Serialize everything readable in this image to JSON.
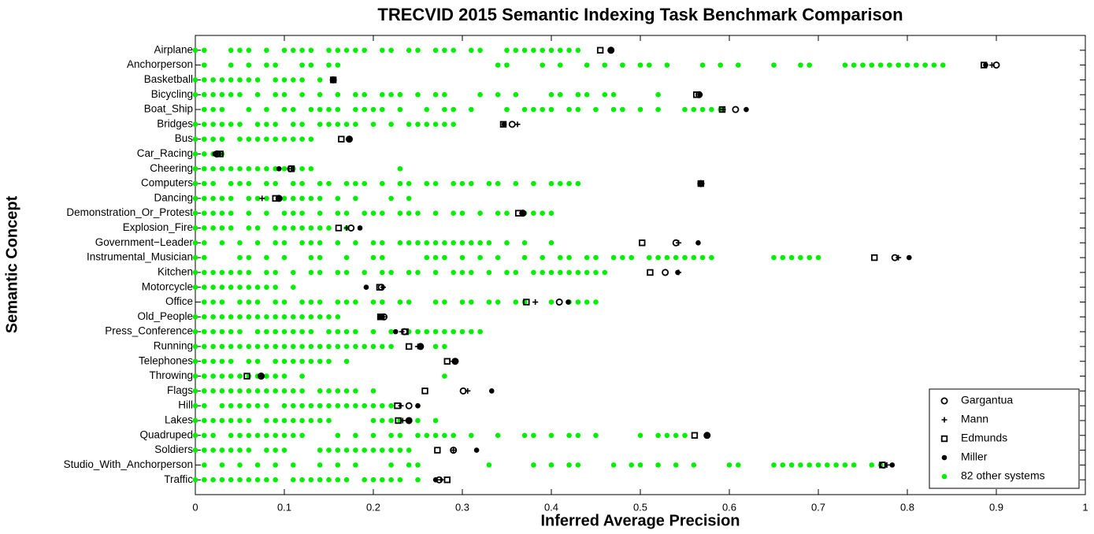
{
  "chart_data": {
    "type": "dotplot",
    "title": "TRECVID 2015 Semantic Indexing Task Benchmark Comparison",
    "xlabel": "Inferred Average Precision",
    "ylabel": "Semantic Concept",
    "categories": [
      "Airplane",
      "Anchorperson",
      "Basketball",
      "Bicycling",
      "Boat_Ship",
      "Bridges",
      "Bus",
      "Car_Racing",
      "Cheering",
      "Computers",
      "Dancing",
      "Demonstration_Or_Protest",
      "Explosion_Fire",
      "Government−Leader",
      "Instrumental_Musician",
      "Kitchen",
      "Motorcycle",
      "Office",
      "Old_People",
      "Press_Conference",
      "Running",
      "Telephones",
      "Throwing",
      "Flags",
      "Hill",
      "Lakes",
      "Quadruped",
      "Soldiers",
      "Studio_With_Anchorperson",
      "Traffic"
    ],
    "xlim": [
      0,
      1
    ],
    "xticks": [
      0,
      0.1,
      0.2,
      0.3,
      0.4,
      0.5,
      0.6,
      0.7,
      0.8,
      0.9,
      1
    ],
    "legend": "lower right",
    "series": [
      {
        "name": "Gargantua",
        "marker": "circle-open",
        "color": "#000000",
        "values": [
          0.467,
          0.9,
          0.155,
          0.566,
          0.607,
          0.356,
          0.173,
          0.024,
          0.107,
          0.568,
          0.094,
          0.368,
          0.175,
          0.54,
          0.786,
          0.528,
          0.209,
          0.409,
          0.212,
          0.235,
          0.253,
          0.292,
          0.074,
          0.301,
          0.24,
          0.24,
          0.575,
          0.29,
          0.773,
          0.274
        ]
      },
      {
        "name": "Mann",
        "marker": "plus",
        "color": "#000000",
        "values": [
          0.467,
          0.895,
          0.155,
          0.567,
          0.593,
          0.362,
          0.172,
          0.028,
          0.108,
          0.569,
          0.075,
          0.367,
          0.17,
          0.543,
          0.79,
          0.543,
          0.211,
          0.382,
          0.212,
          0.232,
          0.25,
          0.29,
          0.074,
          0.306,
          0.231,
          0.233,
          0.575,
          0.29,
          0.777,
          0.276
        ]
      },
      {
        "name": "Edmunds",
        "marker": "square-open",
        "color": "#000000",
        "values": [
          0.455,
          0.886,
          0.155,
          0.563,
          0.592,
          0.346,
          0.164,
          0.028,
          0.108,
          0.568,
          0.09,
          0.363,
          0.161,
          0.502,
          0.763,
          0.511,
          0.207,
          0.372,
          0.208,
          0.236,
          0.24,
          0.283,
          0.058,
          0.258,
          0.227,
          0.228,
          0.561,
          0.272,
          0.772,
          0.283
        ]
      },
      {
        "name": "Miller",
        "marker": "dot",
        "color": "#000000",
        "values": [
          0.467,
          0.888,
          0.155,
          0.567,
          0.619,
          0.347,
          0.173,
          0.022,
          0.094,
          0.568,
          0.094,
          0.368,
          0.185,
          0.565,
          0.802,
          0.542,
          0.192,
          0.419,
          0.208,
          0.225,
          0.253,
          0.292,
          0.075,
          0.333,
          0.25,
          0.24,
          0.575,
          0.316,
          0.783,
          0.27
        ]
      },
      {
        "name": "82 other systems",
        "marker": "dot",
        "color": "#00ee00",
        "values": [
          [
            0.0,
            0.01,
            0.04,
            0.05,
            0.06,
            0.08,
            0.1,
            0.11,
            0.12,
            0.13,
            0.15,
            0.16,
            0.17,
            0.18,
            0.19,
            0.21,
            0.22,
            0.24,
            0.25,
            0.27,
            0.28,
            0.29,
            0.31,
            0.32,
            0.35,
            0.36,
            0.37,
            0.38,
            0.39,
            0.4,
            0.41,
            0.42,
            0.43
          ],
          [
            0.01,
            0.04,
            0.06,
            0.08,
            0.09,
            0.12,
            0.13,
            0.15,
            0.16,
            0.34,
            0.35,
            0.39,
            0.41,
            0.44,
            0.46,
            0.48,
            0.5,
            0.51,
            0.53,
            0.57,
            0.59,
            0.61,
            0.65,
            0.68,
            0.69,
            0.73,
            0.74,
            0.75,
            0.76,
            0.77,
            0.78,
            0.79,
            0.8,
            0.81,
            0.82,
            0.83,
            0.84
          ],
          [
            0.0,
            0.01,
            0.02,
            0.03,
            0.04,
            0.05,
            0.06,
            0.07,
            0.09,
            0.1,
            0.11,
            0.12,
            0.14
          ],
          [
            0.0,
            0.01,
            0.02,
            0.03,
            0.04,
            0.05,
            0.07,
            0.09,
            0.1,
            0.12,
            0.14,
            0.16,
            0.18,
            0.19,
            0.21,
            0.22,
            0.23,
            0.25,
            0.27,
            0.28,
            0.32,
            0.34,
            0.36,
            0.4,
            0.41,
            0.43,
            0.44,
            0.46,
            0.47,
            0.52
          ],
          [
            0.01,
            0.02,
            0.03,
            0.06,
            0.08,
            0.1,
            0.11,
            0.13,
            0.14,
            0.15,
            0.16,
            0.18,
            0.19,
            0.2,
            0.21,
            0.23,
            0.26,
            0.28,
            0.29,
            0.31,
            0.35,
            0.37,
            0.38,
            0.39,
            0.4,
            0.42,
            0.43,
            0.45,
            0.47,
            0.48,
            0.5,
            0.52,
            0.55,
            0.56,
            0.57,
            0.58,
            0.59
          ],
          [
            0.0,
            0.01,
            0.02,
            0.03,
            0.04,
            0.05,
            0.07,
            0.08,
            0.09,
            0.11,
            0.12,
            0.14,
            0.15,
            0.16,
            0.17,
            0.18,
            0.2,
            0.22,
            0.24,
            0.25,
            0.26,
            0.27,
            0.28,
            0.29
          ],
          [
            0.0,
            0.01,
            0.02,
            0.03,
            0.05,
            0.06,
            0.07,
            0.08,
            0.09,
            0.1,
            0.11,
            0.12,
            0.13
          ],
          [
            0.0,
            0.01,
            0.02,
            0.03
          ],
          [
            0.0,
            0.01,
            0.02,
            0.03,
            0.04,
            0.05,
            0.06,
            0.07,
            0.08,
            0.09,
            0.1,
            0.11,
            0.12,
            0.13,
            0.23
          ],
          [
            0.0,
            0.01,
            0.02,
            0.04,
            0.05,
            0.06,
            0.08,
            0.09,
            0.11,
            0.12,
            0.14,
            0.15,
            0.17,
            0.18,
            0.19,
            0.21,
            0.23,
            0.24,
            0.26,
            0.27,
            0.29,
            0.3,
            0.31,
            0.33,
            0.34,
            0.36,
            0.38,
            0.4,
            0.41,
            0.42,
            0.43
          ],
          [
            0.0,
            0.01,
            0.02,
            0.03,
            0.04,
            0.06,
            0.07,
            0.08,
            0.1,
            0.11,
            0.12,
            0.13,
            0.14,
            0.16,
            0.18,
            0.22,
            0.24
          ],
          [
            0.0,
            0.01,
            0.02,
            0.03,
            0.04,
            0.06,
            0.08,
            0.1,
            0.11,
            0.12,
            0.14,
            0.16,
            0.17,
            0.19,
            0.2,
            0.21,
            0.23,
            0.24,
            0.25,
            0.27,
            0.29,
            0.3,
            0.32,
            0.34,
            0.35,
            0.37,
            0.38,
            0.39,
            0.4
          ],
          [
            0.0,
            0.01,
            0.02,
            0.03,
            0.04,
            0.06,
            0.07,
            0.09,
            0.1,
            0.11,
            0.12,
            0.13,
            0.14,
            0.15,
            0.17
          ],
          [
            0.0,
            0.01,
            0.03,
            0.05,
            0.07,
            0.09,
            0.1,
            0.12,
            0.13,
            0.14,
            0.16,
            0.18,
            0.2,
            0.21,
            0.23,
            0.24,
            0.25,
            0.26,
            0.27,
            0.28,
            0.29,
            0.3,
            0.31,
            0.32,
            0.33,
            0.35,
            0.37,
            0.4
          ],
          [
            0.0,
            0.01,
            0.05,
            0.06,
            0.08,
            0.1,
            0.13,
            0.14,
            0.17,
            0.2,
            0.21,
            0.26,
            0.27,
            0.28,
            0.3,
            0.32,
            0.34,
            0.37,
            0.39,
            0.41,
            0.42,
            0.44,
            0.45,
            0.47,
            0.48,
            0.49,
            0.51,
            0.52,
            0.53,
            0.54,
            0.55,
            0.56,
            0.57,
            0.58,
            0.65,
            0.66,
            0.67,
            0.68,
            0.69,
            0.7
          ],
          [
            0.0,
            0.01,
            0.02,
            0.03,
            0.04,
            0.05,
            0.06,
            0.08,
            0.09,
            0.11,
            0.13,
            0.14,
            0.16,
            0.17,
            0.19,
            0.21,
            0.22,
            0.24,
            0.25,
            0.27,
            0.29,
            0.3,
            0.31,
            0.33,
            0.35,
            0.36,
            0.38,
            0.39,
            0.4,
            0.41,
            0.42,
            0.43,
            0.44,
            0.45,
            0.46
          ],
          [
            0.0,
            0.01,
            0.02,
            0.03,
            0.04,
            0.05,
            0.06,
            0.07,
            0.08,
            0.09,
            0.11
          ],
          [
            0.01,
            0.02,
            0.03,
            0.05,
            0.06,
            0.07,
            0.09,
            0.1,
            0.12,
            0.13,
            0.14,
            0.16,
            0.17,
            0.18,
            0.2,
            0.21,
            0.23,
            0.24,
            0.27,
            0.28,
            0.3,
            0.31,
            0.33,
            0.34,
            0.36,
            0.37,
            0.4,
            0.42,
            0.43,
            0.44,
            0.45
          ],
          [
            0.0,
            0.01,
            0.02,
            0.03,
            0.04,
            0.05,
            0.06,
            0.07,
            0.08,
            0.09,
            0.1,
            0.11,
            0.12,
            0.13,
            0.14,
            0.15,
            0.16
          ],
          [
            0.0,
            0.01,
            0.02,
            0.03,
            0.04,
            0.05,
            0.07,
            0.08,
            0.09,
            0.1,
            0.11,
            0.12,
            0.13,
            0.15,
            0.16,
            0.17,
            0.18,
            0.2,
            0.22,
            0.24,
            0.25,
            0.26,
            0.27,
            0.28,
            0.29,
            0.3,
            0.31,
            0.32
          ],
          [
            0.0,
            0.01,
            0.02,
            0.03,
            0.04,
            0.05,
            0.06,
            0.07,
            0.08,
            0.09,
            0.1,
            0.11,
            0.12,
            0.13,
            0.14,
            0.15,
            0.16,
            0.17,
            0.18,
            0.19,
            0.2,
            0.21,
            0.22,
            0.27,
            0.28
          ],
          [
            0.0,
            0.01,
            0.02,
            0.03,
            0.04,
            0.06,
            0.07,
            0.09,
            0.1,
            0.11,
            0.12,
            0.13,
            0.14,
            0.15,
            0.17
          ],
          [
            0.0,
            0.01,
            0.02,
            0.03,
            0.04,
            0.05,
            0.06,
            0.07,
            0.08,
            0.09,
            0.1,
            0.12,
            0.28
          ],
          [
            0.0,
            0.01,
            0.02,
            0.03,
            0.04,
            0.05,
            0.06,
            0.07,
            0.08,
            0.09,
            0.1,
            0.11,
            0.12,
            0.14,
            0.15,
            0.16,
            0.17,
            0.18,
            0.2
          ],
          [
            0.0,
            0.01,
            0.03,
            0.04,
            0.05,
            0.06,
            0.07,
            0.08,
            0.1,
            0.11,
            0.12,
            0.13,
            0.14,
            0.15,
            0.16,
            0.17,
            0.18,
            0.19,
            0.2,
            0.21,
            0.22,
            0.25
          ],
          [
            0.0,
            0.01,
            0.02,
            0.03,
            0.04,
            0.05,
            0.06,
            0.08,
            0.09,
            0.1,
            0.11,
            0.12,
            0.13,
            0.14,
            0.15,
            0.2,
            0.21,
            0.22,
            0.23,
            0.24,
            0.25,
            0.27
          ],
          [
            0.0,
            0.01,
            0.02,
            0.04,
            0.05,
            0.06,
            0.07,
            0.08,
            0.09,
            0.1,
            0.11,
            0.12,
            0.16,
            0.18,
            0.2,
            0.22,
            0.23,
            0.25,
            0.26,
            0.27,
            0.28,
            0.29,
            0.31,
            0.34,
            0.37,
            0.38,
            0.4,
            0.42,
            0.43,
            0.45,
            0.5,
            0.52,
            0.53,
            0.54,
            0.55
          ],
          [
            0.0,
            0.01,
            0.02,
            0.03,
            0.04,
            0.05,
            0.06,
            0.08,
            0.09,
            0.1,
            0.14,
            0.15,
            0.16,
            0.17,
            0.18,
            0.19,
            0.2,
            0.21,
            0.22,
            0.23,
            0.24
          ],
          [
            0.01,
            0.03,
            0.05,
            0.07,
            0.09,
            0.11,
            0.14,
            0.16,
            0.18,
            0.22,
            0.24,
            0.25,
            0.33,
            0.38,
            0.4,
            0.42,
            0.43,
            0.47,
            0.49,
            0.5,
            0.52,
            0.54,
            0.56,
            0.6,
            0.61,
            0.65,
            0.66,
            0.67,
            0.68,
            0.69,
            0.7,
            0.71,
            0.72,
            0.73,
            0.74,
            0.76,
            0.77
          ],
          [
            0.0,
            0.01,
            0.02,
            0.03,
            0.04,
            0.05,
            0.06,
            0.07,
            0.08,
            0.09,
            0.11,
            0.12,
            0.13,
            0.14,
            0.15,
            0.16,
            0.17,
            0.19,
            0.2,
            0.21,
            0.22,
            0.23,
            0.25
          ]
        ]
      }
    ]
  }
}
